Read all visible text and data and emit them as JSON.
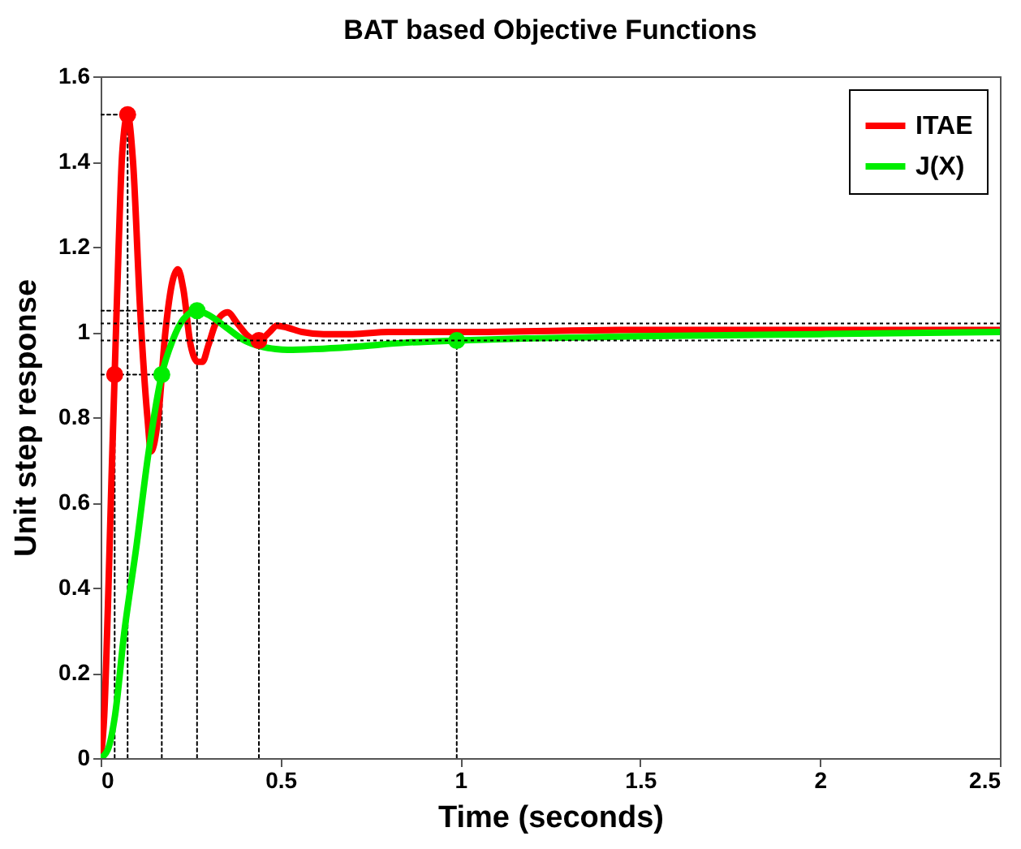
{
  "chart_data": {
    "type": "line",
    "title": "BAT based Objective Functions",
    "xlabel": "Time (seconds)",
    "ylabel": "Unit step response",
    "xlim": [
      0,
      2.5
    ],
    "xticks": [
      0,
      0.5,
      1,
      1.5,
      2,
      2.5
    ],
    "ylim": [
      0,
      1.6
    ],
    "yticks": [
      0,
      0.2,
      0.4,
      0.6,
      0.8,
      1,
      1.2,
      1.4,
      1.6
    ],
    "grid": false,
    "legend": "top right",
    "line_style": "solid",
    "series": [
      {
        "name": "ITAE",
        "color": "#ff0000",
        "x": [
          0,
          0.01,
          0.02,
          0.03,
          0.039,
          0.05,
          0.06,
          0.075,
          0.09,
          0.11,
          0.13,
          0.14,
          0.16,
          0.18,
          0.2,
          0.215,
          0.23,
          0.25,
          0.27,
          0.283,
          0.3,
          0.32,
          0.353,
          0.38,
          0.41,
          0.44,
          0.47,
          0.49,
          0.52,
          0.56,
          0.62,
          0.7,
          0.8,
          1,
          1.5,
          2,
          2.5
        ],
        "values": [
          0,
          0.1,
          0.35,
          0.65,
          0.9,
          1.2,
          1.42,
          1.51,
          1.4,
          1.05,
          0.8,
          0.72,
          0.8,
          1,
          1.12,
          1.147,
          1.1,
          0.97,
          0.93,
          0.93,
          0.97,
          1.02,
          1.046,
          1.02,
          0.99,
          0.98,
          1,
          1.015,
          1.01,
          1,
          0.995,
          0.995,
          1,
          1,
          1.005,
          1.005,
          1.005
        ]
      },
      {
        "name": "J(X)",
        "color": "#00ee00",
        "x": [
          0,
          0.02,
          0.04,
          0.065,
          0.1,
          0.132,
          0.17,
          0.2,
          0.23,
          0.268,
          0.3,
          0.35,
          0.4,
          0.45,
          0.486,
          0.52,
          0.6,
          0.7,
          0.85,
          0.99,
          1.2,
          1.5,
          2,
          2.5
        ],
        "values": [
          0,
          0.02,
          0.1,
          0.29,
          0.5,
          0.71,
          0.9,
          0.98,
          1.03,
          1.05,
          1.04,
          1.01,
          0.98,
          0.965,
          0.96,
          0.958,
          0.96,
          0.965,
          0.975,
          0.98,
          0.985,
          0.99,
          0.995,
          1
        ]
      },
      {
        "type": "scatter",
        "marker": "circle",
        "color": "#ff0000",
        "x": [
          0.039,
          0.075,
          0.44
        ],
        "values": [
          0.9,
          1.51,
          0.98
        ]
      },
      {
        "type": "scatter",
        "marker": "circle",
        "color": "#00ee00",
        "x": [
          0.17,
          0.268,
          0.99
        ],
        "values": [
          0.9,
          1.05,
          0.98
        ]
      },
      {
        "color": "#000000",
        "line_style": "dotted",
        "x": [
          0,
          0.075
        ],
        "values": [
          1.51,
          1.51
        ]
      },
      {
        "color": "#000000",
        "line_style": "dotted",
        "x": [
          0,
          0.17
        ],
        "values": [
          0.9,
          0.9
        ]
      },
      {
        "color": "#000000",
        "line_style": "dotted",
        "x": [
          0,
          0.268
        ],
        "values": [
          1.05,
          1.05
        ]
      },
      {
        "color": "#000000",
        "line_style": "dotted",
        "x": [
          0.039,
          0.039
        ],
        "values": [
          0,
          0.9
        ]
      },
      {
        "color": "#000000",
        "line_style": "dotted",
        "x": [
          0.075,
          0.075
        ],
        "values": [
          0,
          1.51
        ]
      },
      {
        "color": "#000000",
        "line_style": "dotted",
        "x": [
          0.44,
          0.44
        ],
        "values": [
          0,
          0.98
        ]
      },
      {
        "color": "#000000",
        "line_style": "dotted",
        "x": [
          0.17,
          0.17
        ],
        "values": [
          0,
          0.9
        ]
      },
      {
        "color": "#000000",
        "line_style": "dotted",
        "x": [
          0.268,
          0.268
        ],
        "values": [
          0,
          1.05
        ]
      },
      {
        "color": "#000000",
        "line_style": "dotted",
        "x": [
          0.99,
          0.99
        ],
        "values": [
          0,
          0.98
        ]
      }
    ],
    "ref_lines": [
      {
        "axis": "y",
        "value": 1.02,
        "color": "#000000",
        "line_style": "dotted"
      },
      {
        "axis": "y",
        "value": 0.98,
        "color": "#000000",
        "line_style": "dotted"
      }
    ]
  }
}
